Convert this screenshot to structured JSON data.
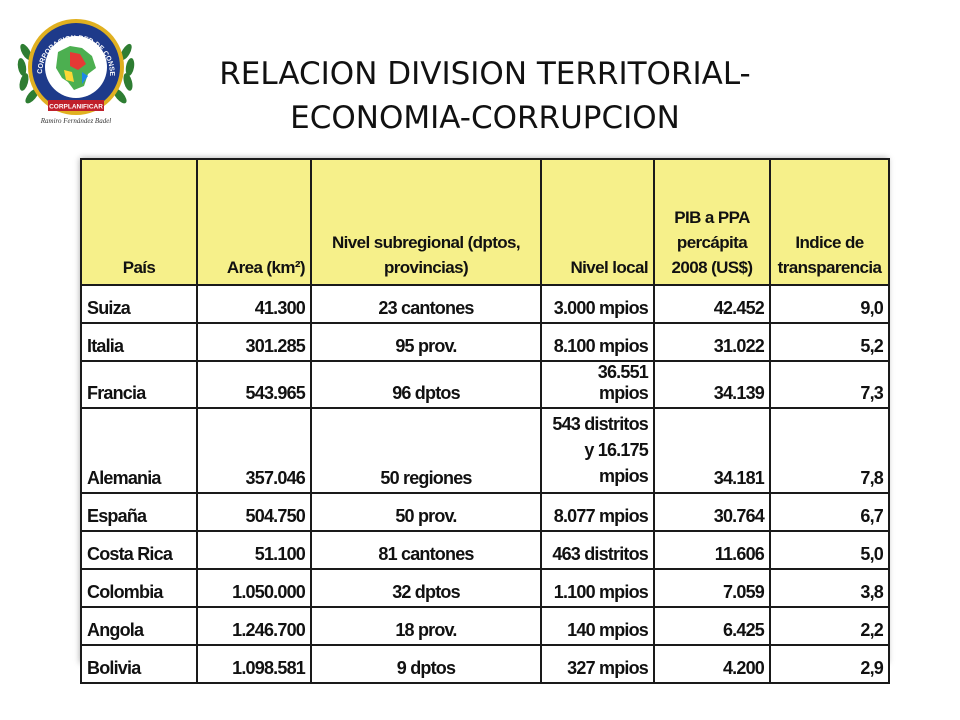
{
  "slide": {
    "title_line1": "RELACION DIVISION TERRITORIAL-",
    "title_line2": "ECONOMIA-CORRUPCION"
  },
  "logo": {
    "ring_text": "CORPORACION RED DE CONSEJOS DE PLANIFICACION DE LA REGION CARIBE",
    "banner": "CORPLANIFICAR",
    "signature": "Ramiro Fernández Badel"
  },
  "table": {
    "headers": [
      "País",
      "Area (km²)",
      "Nivel subregional (dptos, provincias)",
      "Nivel local",
      "PIB a PPA percápita 2008 (US$)",
      "Indice de transparencia"
    ],
    "rows": [
      [
        "Suiza",
        "41.300",
        "23 cantones",
        "3.000 mpios",
        "42.452",
        "9,0"
      ],
      [
        "Italia",
        "301.285",
        "95 prov.",
        "8.100 mpios",
        "31.022",
        "5,2"
      ],
      [
        "Francia",
        "543.965",
        "96 dptos",
        "36.551 mpios",
        "34.139",
        "7,3"
      ],
      [
        "Alemania",
        "357.046",
        "50 regiones",
        "543 distritos y 16.175 mpios",
        "34.181",
        "7,8"
      ],
      [
        "España",
        "504.750",
        "50 prov.",
        "8.077 mpios",
        "30.764",
        "6,7"
      ],
      [
        "Costa Rica",
        "51.100",
        "81 cantones",
        "463 distritos",
        "11.606",
        "5,0"
      ],
      [
        "Colombia",
        "1.050.000",
        "32 dptos",
        "1.100 mpios",
        "7.059",
        "3,8"
      ],
      [
        "Angola",
        "1.246.700",
        "18 prov.",
        "140 mpios",
        "6.425",
        "2,2"
      ],
      [
        "Bolivia",
        "1.098.581",
        "9 dptos",
        "327 mpios",
        "4.200",
        "2,9"
      ]
    ]
  },
  "colors": {
    "header_fill": "#f6f08a",
    "logo_gold": "#e0b020",
    "logo_blue": "#1e3a8a",
    "logo_red": "#c0202a",
    "logo_green": "#2e7d32"
  }
}
